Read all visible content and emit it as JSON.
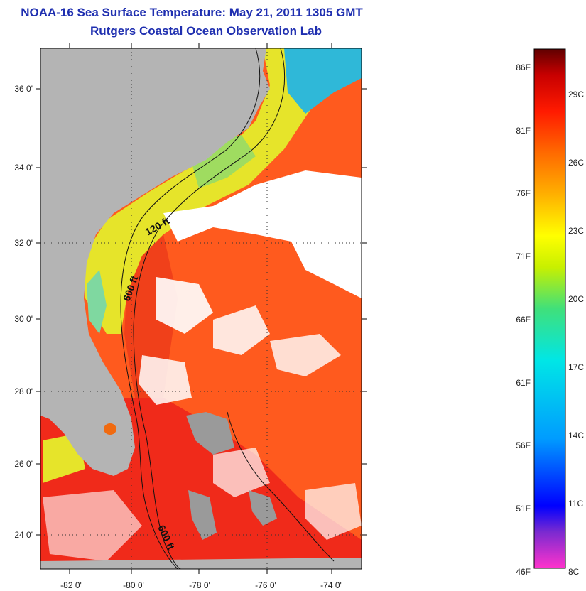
{
  "title": {
    "line1": "NOAA-16 Sea Surface Temperature:  May 21, 2011 1305 GMT",
    "line2": "Rutgers Coastal Ocean Observation Lab"
  },
  "map": {
    "lon_ticks": [
      "-82 0'",
      "-80 0'",
      "-78 0'",
      "-76 0'",
      "-74 0'"
    ],
    "lat_ticks": [
      "36 0'",
      "34 0'",
      "32 0'",
      "30 0'",
      "28 0'",
      "26 0'",
      "24 0'"
    ],
    "contours": [
      "120 ft",
      "600 ft",
      "600 ft"
    ],
    "colors": {
      "land": "#b4b4b4",
      "gulf_stream": "#ff5a1e",
      "warm_south": "#f02a1a",
      "shelf": "#e6e42a",
      "cool": "#7fd8a0",
      "cloud": "#ffffff"
    }
  },
  "colorbar": {
    "fahrenheit_labels": [
      "86F",
      "81F",
      "76F",
      "71F",
      "66F",
      "61F",
      "56F",
      "51F",
      "46F"
    ],
    "celsius_labels": [
      "29C",
      "26C",
      "23C",
      "20C",
      "17C",
      "14C",
      "11C",
      "8C"
    ],
    "gradient_colors": [
      "#ff33cc",
      "#7a2ad0",
      "#0000ff",
      "#009cff",
      "#00e6e6",
      "#40e07a",
      "#c8f000",
      "#ffff00",
      "#ffb000",
      "#ff6a00",
      "#ff1a00",
      "#c80000",
      "#600000"
    ]
  }
}
